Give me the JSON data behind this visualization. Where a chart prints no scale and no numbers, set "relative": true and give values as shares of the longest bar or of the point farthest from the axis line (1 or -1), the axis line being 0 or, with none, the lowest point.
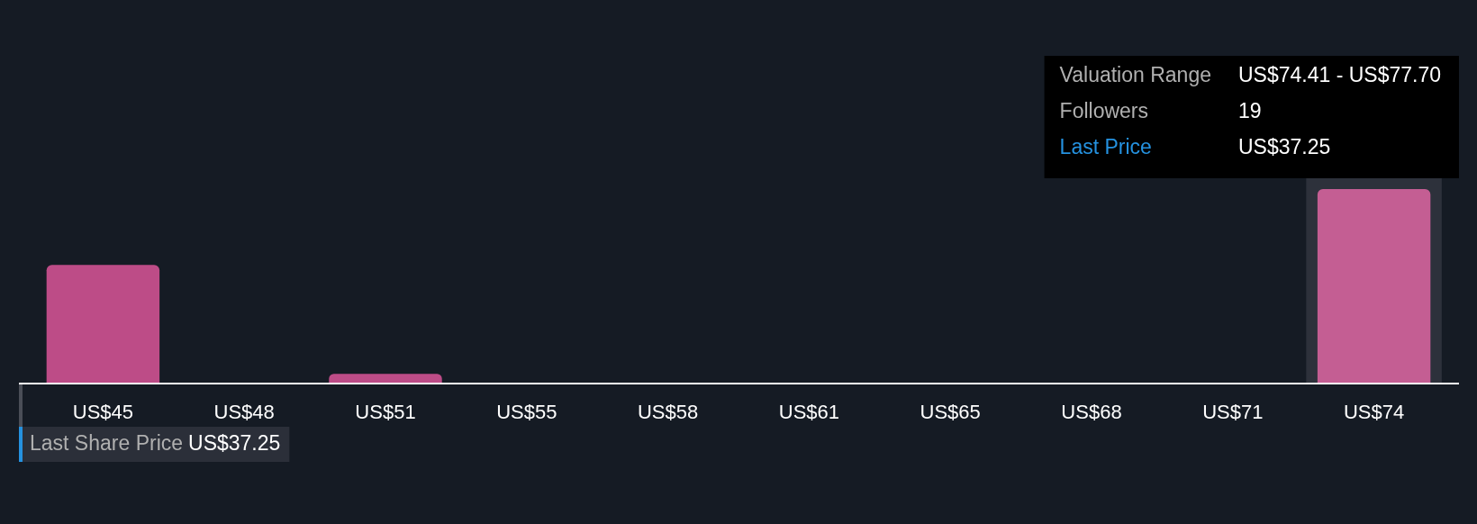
{
  "chart_data": {
    "type": "bar",
    "categories": [
      "US$45",
      "US$48",
      "US$51",
      "US$55",
      "US$58",
      "US$61",
      "US$65",
      "US$68",
      "US$71",
      "US$74"
    ],
    "values": [
      0.61,
      0,
      0.05,
      0,
      0,
      0,
      0,
      0,
      0,
      1
    ],
    "colors": [
      "#bd4c87",
      "#bd4c87",
      "#bd4c87",
      "#bd4c87",
      "#bd4c87",
      "#bd4c87",
      "#bd4c87",
      "#bd4c87",
      "#bd4c87",
      "#c45e93"
    ],
    "relative": true,
    "bands": [
      {
        "axis": "x",
        "from": "US$74",
        "to": "US$74",
        "color": "#2d313b"
      }
    ],
    "annotations": [
      "Valuation Range",
      "US$74.41 - US$77.70",
      "Followers",
      "19",
      "Last Price",
      "US$37.25",
      "Last Share Price",
      "US$37.25"
    ]
  }
}
